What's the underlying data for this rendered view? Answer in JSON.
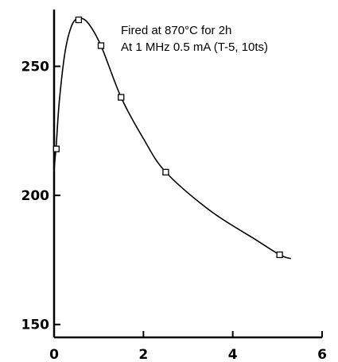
{
  "chart_data": {
    "type": "line",
    "title": "",
    "xlabel": "",
    "ylabel": "",
    "annotations": [
      "Fired at 870°C for 2h",
      "At 1 MHz 0.5 mA (T-5, 10ts)"
    ],
    "xlim": [
      0,
      6
    ],
    "ylim": [
      145,
      272
    ],
    "xticks": [
      0,
      2,
      4,
      6
    ],
    "yticks": [
      150,
      200,
      250
    ],
    "grid": false,
    "legend": "none",
    "colors": {
      "line": "#000000",
      "axis": "#000000",
      "marker_fill": "#ffffff"
    },
    "series": [
      {
        "markers": "square",
        "points": [
          {
            "x": 0.05,
            "y": 218
          },
          {
            "x": 0.55,
            "y": 268
          },
          {
            "x": 1.05,
            "y": 258
          },
          {
            "x": 1.5,
            "y": 238
          },
          {
            "x": 2.5,
            "y": 209
          },
          {
            "x": 5.05,
            "y": 177
          }
        ],
        "curve": [
          {
            "x": 0.0,
            "y": 210
          },
          {
            "x": 0.05,
            "y": 220
          },
          {
            "x": 0.12,
            "y": 237
          },
          {
            "x": 0.25,
            "y": 256
          },
          {
            "x": 0.4,
            "y": 266
          },
          {
            "x": 0.55,
            "y": 268.5
          },
          {
            "x": 0.75,
            "y": 267
          },
          {
            "x": 1.05,
            "y": 258
          },
          {
            "x": 1.5,
            "y": 238
          },
          {
            "x": 2.0,
            "y": 222
          },
          {
            "x": 2.5,
            "y": 209
          },
          {
            "x": 3.5,
            "y": 194
          },
          {
            "x": 4.5,
            "y": 183
          },
          {
            "x": 5.05,
            "y": 177
          },
          {
            "x": 5.3,
            "y": 175.5
          }
        ]
      }
    ]
  }
}
